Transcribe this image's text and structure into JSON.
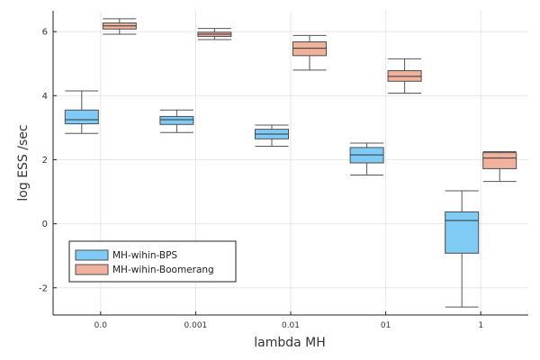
{
  "chart_data": {
    "type": "box",
    "categories": [
      "0.0",
      "0.001",
      "0.01",
      "01",
      "1"
    ],
    "xlabel": "lambda MH",
    "ylabel": "log ESS /sec",
    "ylim": [
      -2.85,
      6.65
    ],
    "yticks": [
      -2,
      0,
      2,
      4,
      6
    ],
    "ytick_labels": [
      "-2",
      "0",
      "2",
      "4",
      "6"
    ],
    "grid": true,
    "legend_position": "bottom-left",
    "series": [
      {
        "name": "MH-wihin-BPS",
        "color": "#7fcbf5",
        "boxes": [
          {
            "min": 2.82,
            "q1": 3.12,
            "median": 3.25,
            "q3": 3.55,
            "max": 4.15
          },
          {
            "min": 2.85,
            "q1": 3.1,
            "median": 3.25,
            "q3": 3.35,
            "max": 3.55
          },
          {
            "min": 2.42,
            "q1": 2.65,
            "median": 2.8,
            "q3": 2.95,
            "max": 3.08
          },
          {
            "min": 1.52,
            "q1": 1.9,
            "median": 2.15,
            "q3": 2.38,
            "max": 2.52
          },
          {
            "min": -2.6,
            "q1": -0.92,
            "median": 0.1,
            "q3": 0.37,
            "max": 1.03
          }
        ]
      },
      {
        "name": "MH-wihin-Boomerang",
        "color": "#f0b29c",
        "boxes": [
          {
            "min": 5.92,
            "q1": 6.08,
            "median": 6.18,
            "q3": 6.27,
            "max": 6.4
          },
          {
            "min": 5.75,
            "q1": 5.85,
            "median": 5.92,
            "q3": 5.98,
            "max": 6.1
          },
          {
            "min": 4.8,
            "q1": 5.25,
            "median": 5.48,
            "q3": 5.68,
            "max": 5.88
          },
          {
            "min": 4.08,
            "q1": 4.45,
            "median": 4.6,
            "q3": 4.78,
            "max": 5.15
          },
          {
            "min": 1.32,
            "q1": 1.72,
            "median": 2.05,
            "q3": 2.22,
            "max": 2.25
          }
        ]
      }
    ]
  }
}
